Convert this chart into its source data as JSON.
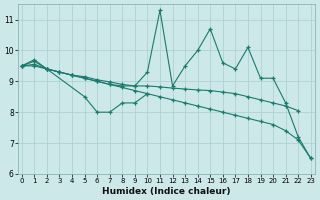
{
  "xlabel": "Humidex (Indice chaleur)",
  "x_values": [
    0,
    1,
    2,
    3,
    4,
    5,
    6,
    7,
    8,
    9,
    10,
    11,
    12,
    13,
    14,
    15,
    16,
    17,
    18,
    19,
    20,
    21,
    22,
    23
  ],
  "line_spiky_y": [
    9.5,
    9.65,
    9.4,
    9.3,
    9.2,
    9.1,
    9.0,
    8.9,
    8.85,
    8.85,
    9.3,
    11.3,
    8.85,
    9.5,
    10.0,
    10.7,
    9.6,
    9.4,
    10.1,
    9.1,
    9.1,
    8.3,
    7.2,
    6.5
  ],
  "line_upper_y": [
    9.5,
    9.5,
    9.4,
    9.3,
    9.2,
    9.15,
    9.05,
    8.98,
    8.9,
    8.85,
    8.85,
    8.82,
    8.78,
    8.75,
    8.72,
    8.7,
    8.65,
    8.6,
    8.5,
    8.4,
    8.3,
    8.2,
    8.05,
    null
  ],
  "line_lower_y": [
    9.5,
    9.55,
    9.4,
    9.3,
    9.2,
    9.1,
    9.0,
    8.9,
    8.8,
    8.7,
    8.6,
    8.5,
    8.4,
    8.3,
    8.2,
    8.1,
    8.0,
    7.9,
    7.8,
    7.7,
    7.6,
    7.4,
    7.1,
    6.5
  ],
  "line_short_x": [
    0,
    1,
    2,
    5,
    6,
    7,
    8,
    9,
    10
  ],
  "line_short_y": [
    9.5,
    9.7,
    9.4,
    8.5,
    8.0,
    8.0,
    8.3,
    8.3,
    8.6
  ],
  "line_color": "#1a7a6e",
  "bg_color": "#cce8e8",
  "grid_color": "#aacece",
  "xlim": [
    0,
    23
  ],
  "ylim": [
    6,
    11.5
  ],
  "yticks": [
    6,
    7,
    8,
    9,
    10,
    11
  ],
  "xticks": [
    0,
    1,
    2,
    3,
    4,
    5,
    6,
    7,
    8,
    9,
    10,
    11,
    12,
    13,
    14,
    15,
    16,
    17,
    18,
    19,
    20,
    21,
    22,
    23
  ]
}
